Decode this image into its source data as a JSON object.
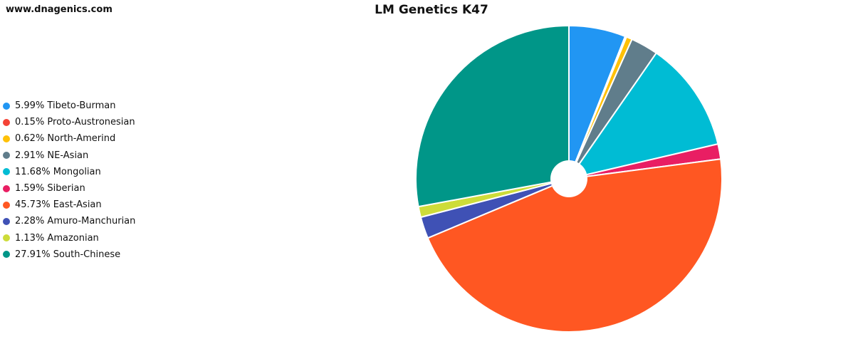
{
  "header": {
    "site_url": "www.dnagenics.com"
  },
  "chart_data": {
    "type": "pie",
    "title": "LM Genetics K47",
    "legend_position": "left",
    "donut_hole": true,
    "start_angle_deg": 90,
    "direction": "clockwise",
    "slice_border_color": "#ffffff",
    "slices": [
      {
        "label": "5.99% Tibeto-Burman",
        "name": "Tibeto-Burman",
        "value": 5.99,
        "color": "#2196F3"
      },
      {
        "label": "0.15% Proto-Austronesian",
        "name": "Proto-Austronesian",
        "value": 0.15,
        "color": "#F44336"
      },
      {
        "label": "0.62% North-Amerind",
        "name": "North-Amerind",
        "value": 0.62,
        "color": "#FFC107"
      },
      {
        "label": "2.91% NE-Asian",
        "name": "NE-Asian",
        "value": 2.91,
        "color": "#607D8B"
      },
      {
        "label": "11.68% Mongolian",
        "name": "Mongolian",
        "value": 11.68,
        "color": "#00BCD4"
      },
      {
        "label": "1.59% Siberian",
        "name": "Siberian",
        "value": 1.59,
        "color": "#E91E63"
      },
      {
        "label": "45.73% East-Asian",
        "name": "East-Asian",
        "value": 45.73,
        "color": "#FF5722"
      },
      {
        "label": "2.28% Amuro-Manchurian",
        "name": "Amuro-Manchurian",
        "value": 2.28,
        "color": "#3F51B5"
      },
      {
        "label": "1.13% Amazonian",
        "name": "Amazonian",
        "value": 1.13,
        "color": "#CDDC39"
      },
      {
        "label": "27.91% South-Chinese",
        "name": "South-Chinese",
        "value": 27.91,
        "color": "#009688"
      }
    ]
  }
}
